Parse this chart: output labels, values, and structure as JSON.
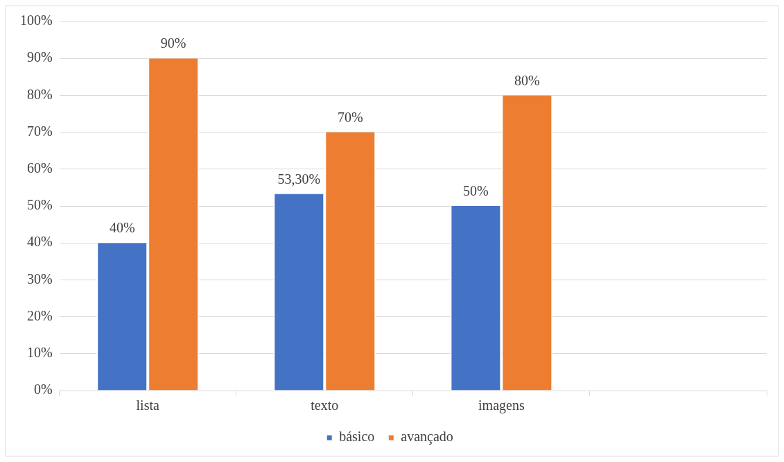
{
  "chart_data": {
    "type": "bar",
    "categories": [
      "lista",
      "texto",
      "imagens",
      null
    ],
    "series": [
      {
        "name": "básico",
        "color": "#4472c4",
        "values": [
          40,
          53.3,
          50,
          null
        ],
        "value_labels": [
          "40%",
          "53,30%",
          "50%",
          null
        ]
      },
      {
        "name": "avançado",
        "color": "#ed7d31",
        "values": [
          90,
          70,
          80,
          null
        ],
        "value_labels": [
          "90%",
          "70%",
          "80%",
          null
        ]
      }
    ],
    "ylim": [
      0,
      100
    ],
    "yticks": [
      {
        "value": 0,
        "label": "0%"
      },
      {
        "value": 10,
        "label": "10%"
      },
      {
        "value": 20,
        "label": "20%"
      },
      {
        "value": 30,
        "label": "30%"
      },
      {
        "value": 40,
        "label": "40%"
      },
      {
        "value": 50,
        "label": "50%"
      },
      {
        "value": 60,
        "label": "60%"
      },
      {
        "value": 70,
        "label": "70%"
      },
      {
        "value": 80,
        "label": "80%"
      },
      {
        "value": 90,
        "label": "90%"
      },
      {
        "value": 100,
        "label": "100%"
      }
    ],
    "grid": "y",
    "legend": "bottom"
  }
}
